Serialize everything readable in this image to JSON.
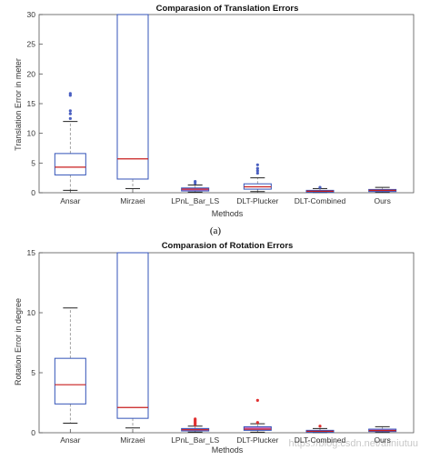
{
  "caption": "(a)",
  "watermark": "https://blog.csdn.net/aliniutuu",
  "colors": {
    "box": "#3353b8",
    "median": "#c81e1e",
    "whisker": "#222222",
    "outlier_blue": "#4a5fc1",
    "outlier_red": "#e03030",
    "fill_small": "#c879c9"
  },
  "chart_data": [
    {
      "type": "box",
      "title": "Comparasion of Translation Errors",
      "xlabel": "Methods",
      "ylabel": "Translation Error in meter",
      "ylim": [
        0,
        30
      ],
      "yticks": [
        0,
        5,
        10,
        15,
        20,
        25,
        30
      ],
      "grid": false,
      "categories": [
        "Ansar",
        "Mirzaei",
        "LPnL_Bar_LS",
        "DLT-Plucker",
        "DLT-Combined",
        "Ours"
      ],
      "boxes": [
        {
          "q1": 3.0,
          "median": 4.3,
          "q3": 6.6,
          "whisker_low": 0.4,
          "whisker_high": 12.0,
          "outliers": [
            12.5,
            13.3,
            13.8,
            16.4,
            16.7
          ],
          "outlier_color": "blue"
        },
        {
          "q1": 2.3,
          "median": 5.7,
          "q3": 30,
          "whisker_low": 0.7,
          "whisker_high": 30,
          "outliers": [],
          "outlier_color": "blue"
        },
        {
          "q1": 0.3,
          "median": 0.6,
          "q3": 0.8,
          "whisker_low": 0.1,
          "whisker_high": 1.3,
          "outliers": [
            1.6,
            1.9
          ],
          "outlier_color": "blue"
        },
        {
          "q1": 0.6,
          "median": 1.0,
          "q3": 1.5,
          "whisker_low": 0.2,
          "whisker_high": 2.5,
          "outliers": [
            3.3,
            3.7,
            4.1,
            4.7
          ],
          "outlier_color": "blue"
        },
        {
          "q1": 0.1,
          "median": 0.25,
          "q3": 0.4,
          "whisker_low": 0.05,
          "whisker_high": 0.7,
          "outliers": [
            0.9
          ],
          "outlier_color": "blue"
        },
        {
          "q1": 0.2,
          "median": 0.4,
          "q3": 0.55,
          "whisker_low": 0.05,
          "whisker_high": 0.9,
          "outliers": [],
          "outlier_color": "blue"
        }
      ]
    },
    {
      "type": "box",
      "title": "Comparasion of Rotation Errors",
      "xlabel": "Methods",
      "ylabel": "Rotation Error in degree",
      "ylim": [
        0,
        15
      ],
      "yticks": [
        0,
        5,
        10,
        15
      ],
      "grid": false,
      "categories": [
        "Ansar",
        "Mirzaei",
        "LPnL_Bar_LS",
        "DLT-Plucker",
        "DLT-Combined",
        "Ours"
      ],
      "boxes": [
        {
          "q1": 2.4,
          "median": 4.0,
          "q3": 6.2,
          "whisker_low": 0.8,
          "whisker_high": 10.4,
          "outliers": [],
          "outlier_color": "red"
        },
        {
          "q1": 1.2,
          "median": 2.1,
          "q3": 15,
          "whisker_low": 0.4,
          "whisker_high": 15,
          "outliers": [],
          "outlier_color": "red"
        },
        {
          "q1": 0.15,
          "median": 0.25,
          "q3": 0.35,
          "whisker_low": 0.05,
          "whisker_high": 0.55,
          "outliers": [
            0.65,
            0.75,
            0.85,
            0.95,
            1.05,
            1.15
          ],
          "outlier_color": "red"
        },
        {
          "q1": 0.2,
          "median": 0.3,
          "q3": 0.5,
          "whisker_low": 0.05,
          "whisker_high": 0.75,
          "outliers": [
            0.85,
            2.7
          ],
          "outlier_color": "red"
        },
        {
          "q1": 0.05,
          "median": 0.12,
          "q3": 0.2,
          "whisker_low": 0.02,
          "whisker_high": 0.35,
          "outliers": [
            0.55
          ],
          "outlier_color": "red"
        },
        {
          "q1": 0.1,
          "median": 0.18,
          "q3": 0.3,
          "whisker_low": 0.03,
          "whisker_high": 0.5,
          "outliers": [],
          "outlier_color": "red"
        }
      ]
    }
  ]
}
